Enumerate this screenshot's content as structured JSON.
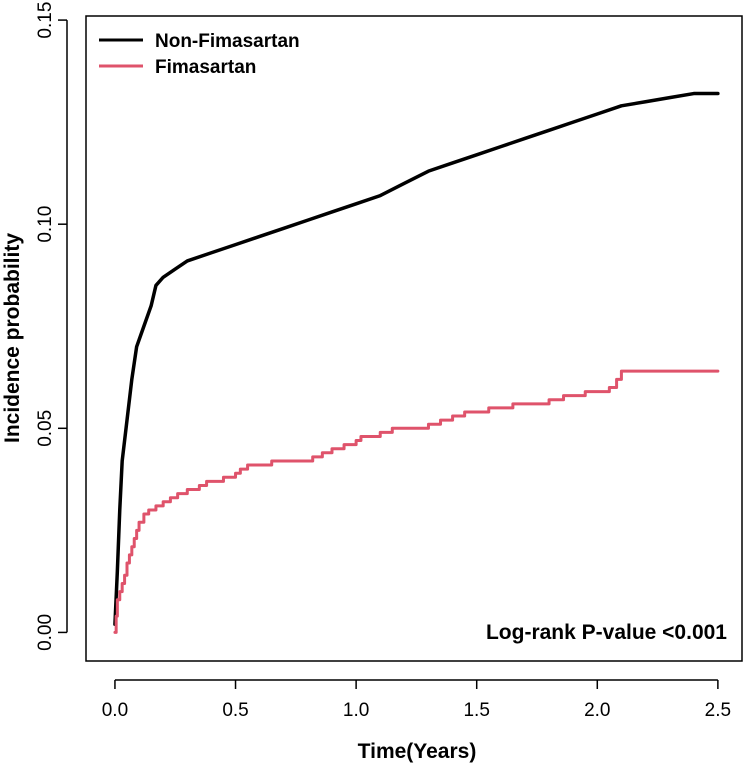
{
  "chart_data": {
    "type": "line",
    "title": "",
    "xlabel": "Time(Years)",
    "ylabel": "Incidence probability",
    "xlim": [
      -0.12,
      2.6
    ],
    "ylim": [
      -0.007,
      0.151
    ],
    "xticks": [
      0.0,
      0.5,
      1.0,
      1.5,
      2.0,
      2.5
    ],
    "xtick_labels": [
      "0.0",
      "0.5",
      "1.0",
      "1.5",
      "2.0",
      "2.5"
    ],
    "yticks": [
      0.0,
      0.05,
      0.1,
      0.15
    ],
    "ytick_labels": [
      "0.00",
      "0.05",
      "0.10",
      "0.15"
    ],
    "legend_position": "top-left",
    "annotation": "Log-rank P-value <0.001",
    "series": [
      {
        "name": "Non-Fimasartan",
        "color": "#000000",
        "step": false,
        "points": [
          [
            0,
            0.002
          ],
          [
            0.01,
            0.015
          ],
          [
            0.02,
            0.03
          ],
          [
            0.03,
            0.042
          ],
          [
            0.05,
            0.052
          ],
          [
            0.07,
            0.062
          ],
          [
            0.09,
            0.07
          ],
          [
            0.12,
            0.075
          ],
          [
            0.15,
            0.08
          ],
          [
            0.17,
            0.085
          ],
          [
            0.2,
            0.087
          ],
          [
            0.25,
            0.089
          ],
          [
            0.3,
            0.091
          ],
          [
            0.4,
            0.093
          ],
          [
            0.5,
            0.095
          ],
          [
            0.6,
            0.097
          ],
          [
            0.7,
            0.099
          ],
          [
            0.8,
            0.101
          ],
          [
            0.9,
            0.103
          ],
          [
            1.0,
            0.105
          ],
          [
            1.1,
            0.107
          ],
          [
            1.2,
            0.11
          ],
          [
            1.3,
            0.113
          ],
          [
            1.4,
            0.115
          ],
          [
            1.5,
            0.117
          ],
          [
            1.6,
            0.119
          ],
          [
            1.7,
            0.121
          ],
          [
            1.8,
            0.123
          ],
          [
            1.9,
            0.125
          ],
          [
            2.0,
            0.127
          ],
          [
            2.1,
            0.129
          ],
          [
            2.2,
            0.13
          ],
          [
            2.3,
            0.131
          ],
          [
            2.4,
            0.132
          ],
          [
            2.5,
            0.132
          ]
        ]
      },
      {
        "name": "Fimasartan",
        "color": "#DF536B",
        "step": true,
        "points": [
          [
            0,
            0.0
          ],
          [
            0.005,
            0.004
          ],
          [
            0.01,
            0.008
          ],
          [
            0.02,
            0.01
          ],
          [
            0.03,
            0.012
          ],
          [
            0.04,
            0.014
          ],
          [
            0.05,
            0.017
          ],
          [
            0.06,
            0.019
          ],
          [
            0.07,
            0.021
          ],
          [
            0.08,
            0.023
          ],
          [
            0.09,
            0.025
          ],
          [
            0.1,
            0.027
          ],
          [
            0.12,
            0.029
          ],
          [
            0.14,
            0.03
          ],
          [
            0.17,
            0.031
          ],
          [
            0.2,
            0.032
          ],
          [
            0.23,
            0.033
          ],
          [
            0.26,
            0.034
          ],
          [
            0.3,
            0.035
          ],
          [
            0.35,
            0.036
          ],
          [
            0.38,
            0.037
          ],
          [
            0.45,
            0.038
          ],
          [
            0.5,
            0.039
          ],
          [
            0.52,
            0.04
          ],
          [
            0.55,
            0.041
          ],
          [
            0.65,
            0.042
          ],
          [
            0.8,
            0.042
          ],
          [
            0.82,
            0.043
          ],
          [
            0.86,
            0.044
          ],
          [
            0.9,
            0.045
          ],
          [
            0.95,
            0.046
          ],
          [
            1.0,
            0.047
          ],
          [
            1.02,
            0.048
          ],
          [
            1.1,
            0.049
          ],
          [
            1.15,
            0.05
          ],
          [
            1.3,
            0.051
          ],
          [
            1.35,
            0.052
          ],
          [
            1.4,
            0.053
          ],
          [
            1.45,
            0.054
          ],
          [
            1.55,
            0.055
          ],
          [
            1.65,
            0.056
          ],
          [
            1.8,
            0.057
          ],
          [
            1.86,
            0.058
          ],
          [
            1.95,
            0.059
          ],
          [
            2.05,
            0.06
          ],
          [
            2.08,
            0.062
          ],
          [
            2.1,
            0.064
          ],
          [
            2.5,
            0.064
          ]
        ]
      }
    ]
  }
}
